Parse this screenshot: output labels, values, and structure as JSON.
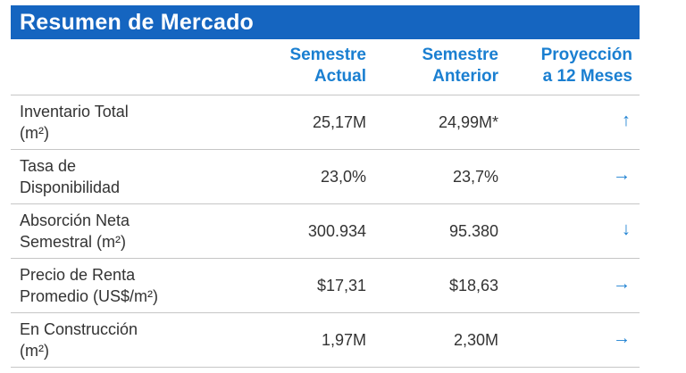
{
  "title": "Resumen de Mercado",
  "headers": {
    "col1": [
      "Semestre",
      "Actual"
    ],
    "col2": [
      "Semestre",
      "Anterior"
    ],
    "col3": [
      "Proyección",
      "a 12 Meses"
    ]
  },
  "rows": [
    {
      "label": [
        "Inventario Total",
        "(m²)"
      ],
      "actual": "25,17M",
      "anterior": "24,99M*",
      "trend_icon": "arrow-up-icon",
      "trend": "↑"
    },
    {
      "label": [
        "Tasa de",
        "Disponibilidad"
      ],
      "actual": "23,0%",
      "anterior": "23,7%",
      "trend_icon": "arrow-right-icon",
      "trend": "→"
    },
    {
      "label": [
        "Absorción Neta",
        "Semestral (m²)"
      ],
      "actual": "300.934",
      "anterior": "95.380",
      "trend_icon": "arrow-down-icon",
      "trend": "↓"
    },
    {
      "label": [
        "Precio de Renta",
        "Promedio (US$/m²)"
      ],
      "actual": "$17,31",
      "anterior": "$18,63",
      "trend_icon": "arrow-right-icon",
      "trend": "→"
    },
    {
      "label": [
        "En Construcción",
        "(m²)"
      ],
      "actual": "1,97M",
      "anterior": "2,30M",
      "trend_icon": "arrow-right-icon",
      "trend": "→"
    }
  ],
  "colors": {
    "header_bg": "#1565c0",
    "accent": "#1a7fd1",
    "text": "#333333"
  }
}
